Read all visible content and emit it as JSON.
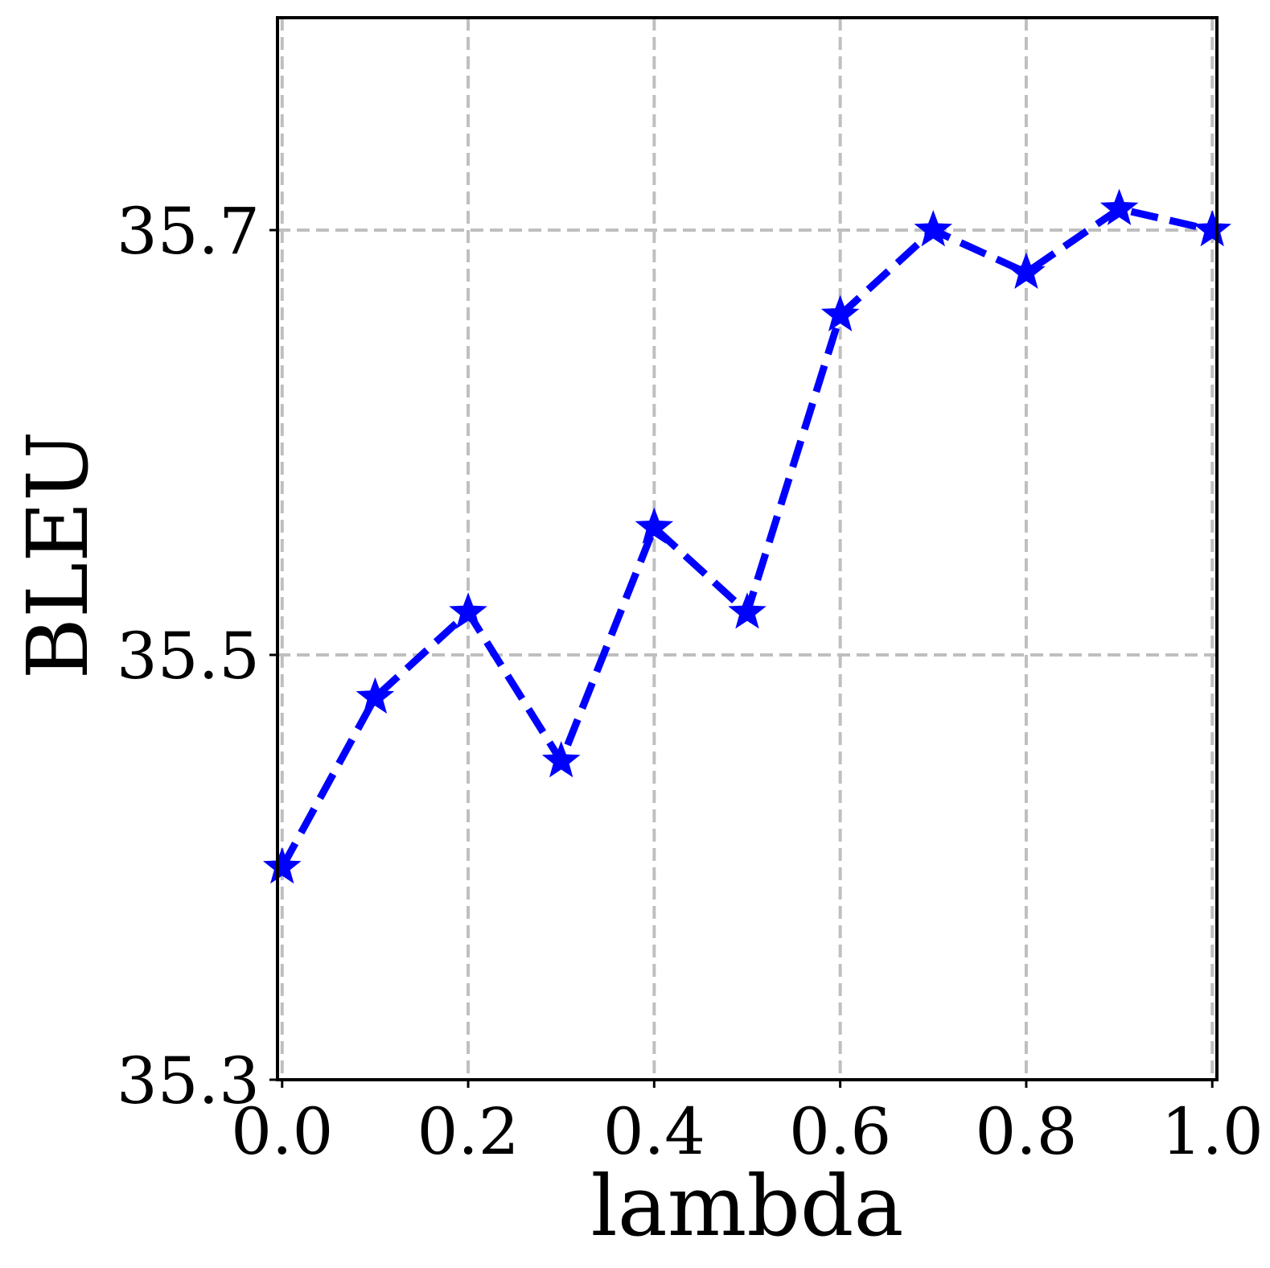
{
  "chart_data": {
    "type": "line",
    "title": "",
    "xlabel": "lambda",
    "ylabel": "BLEU",
    "xlim": [
      -0.005,
      1.005
    ],
    "ylim": [
      35.3,
      35.8
    ],
    "xticks": [
      0.0,
      0.2,
      0.4,
      0.6,
      0.8,
      1.0
    ],
    "xtick_labels": [
      "0.0",
      "0.2",
      "0.4",
      "0.6",
      "0.8",
      "1.0"
    ],
    "yticks": [
      35.3,
      35.5,
      35.7
    ],
    "ytick_labels": [
      "35.3",
      "35.5",
      "35.7"
    ],
    "grid": true,
    "legend": "none",
    "series": [
      {
        "color": "#0000ff",
        "line_style": "dashed",
        "marker": "star",
        "x": [
          0.0,
          0.1,
          0.2,
          0.3,
          0.4,
          0.5,
          0.6,
          0.7,
          0.8,
          0.9,
          1.0
        ],
        "y": [
          35.4,
          35.48,
          35.52,
          35.45,
          35.56,
          35.52,
          35.66,
          35.7,
          35.68,
          35.71,
          35.7
        ]
      }
    ]
  }
}
